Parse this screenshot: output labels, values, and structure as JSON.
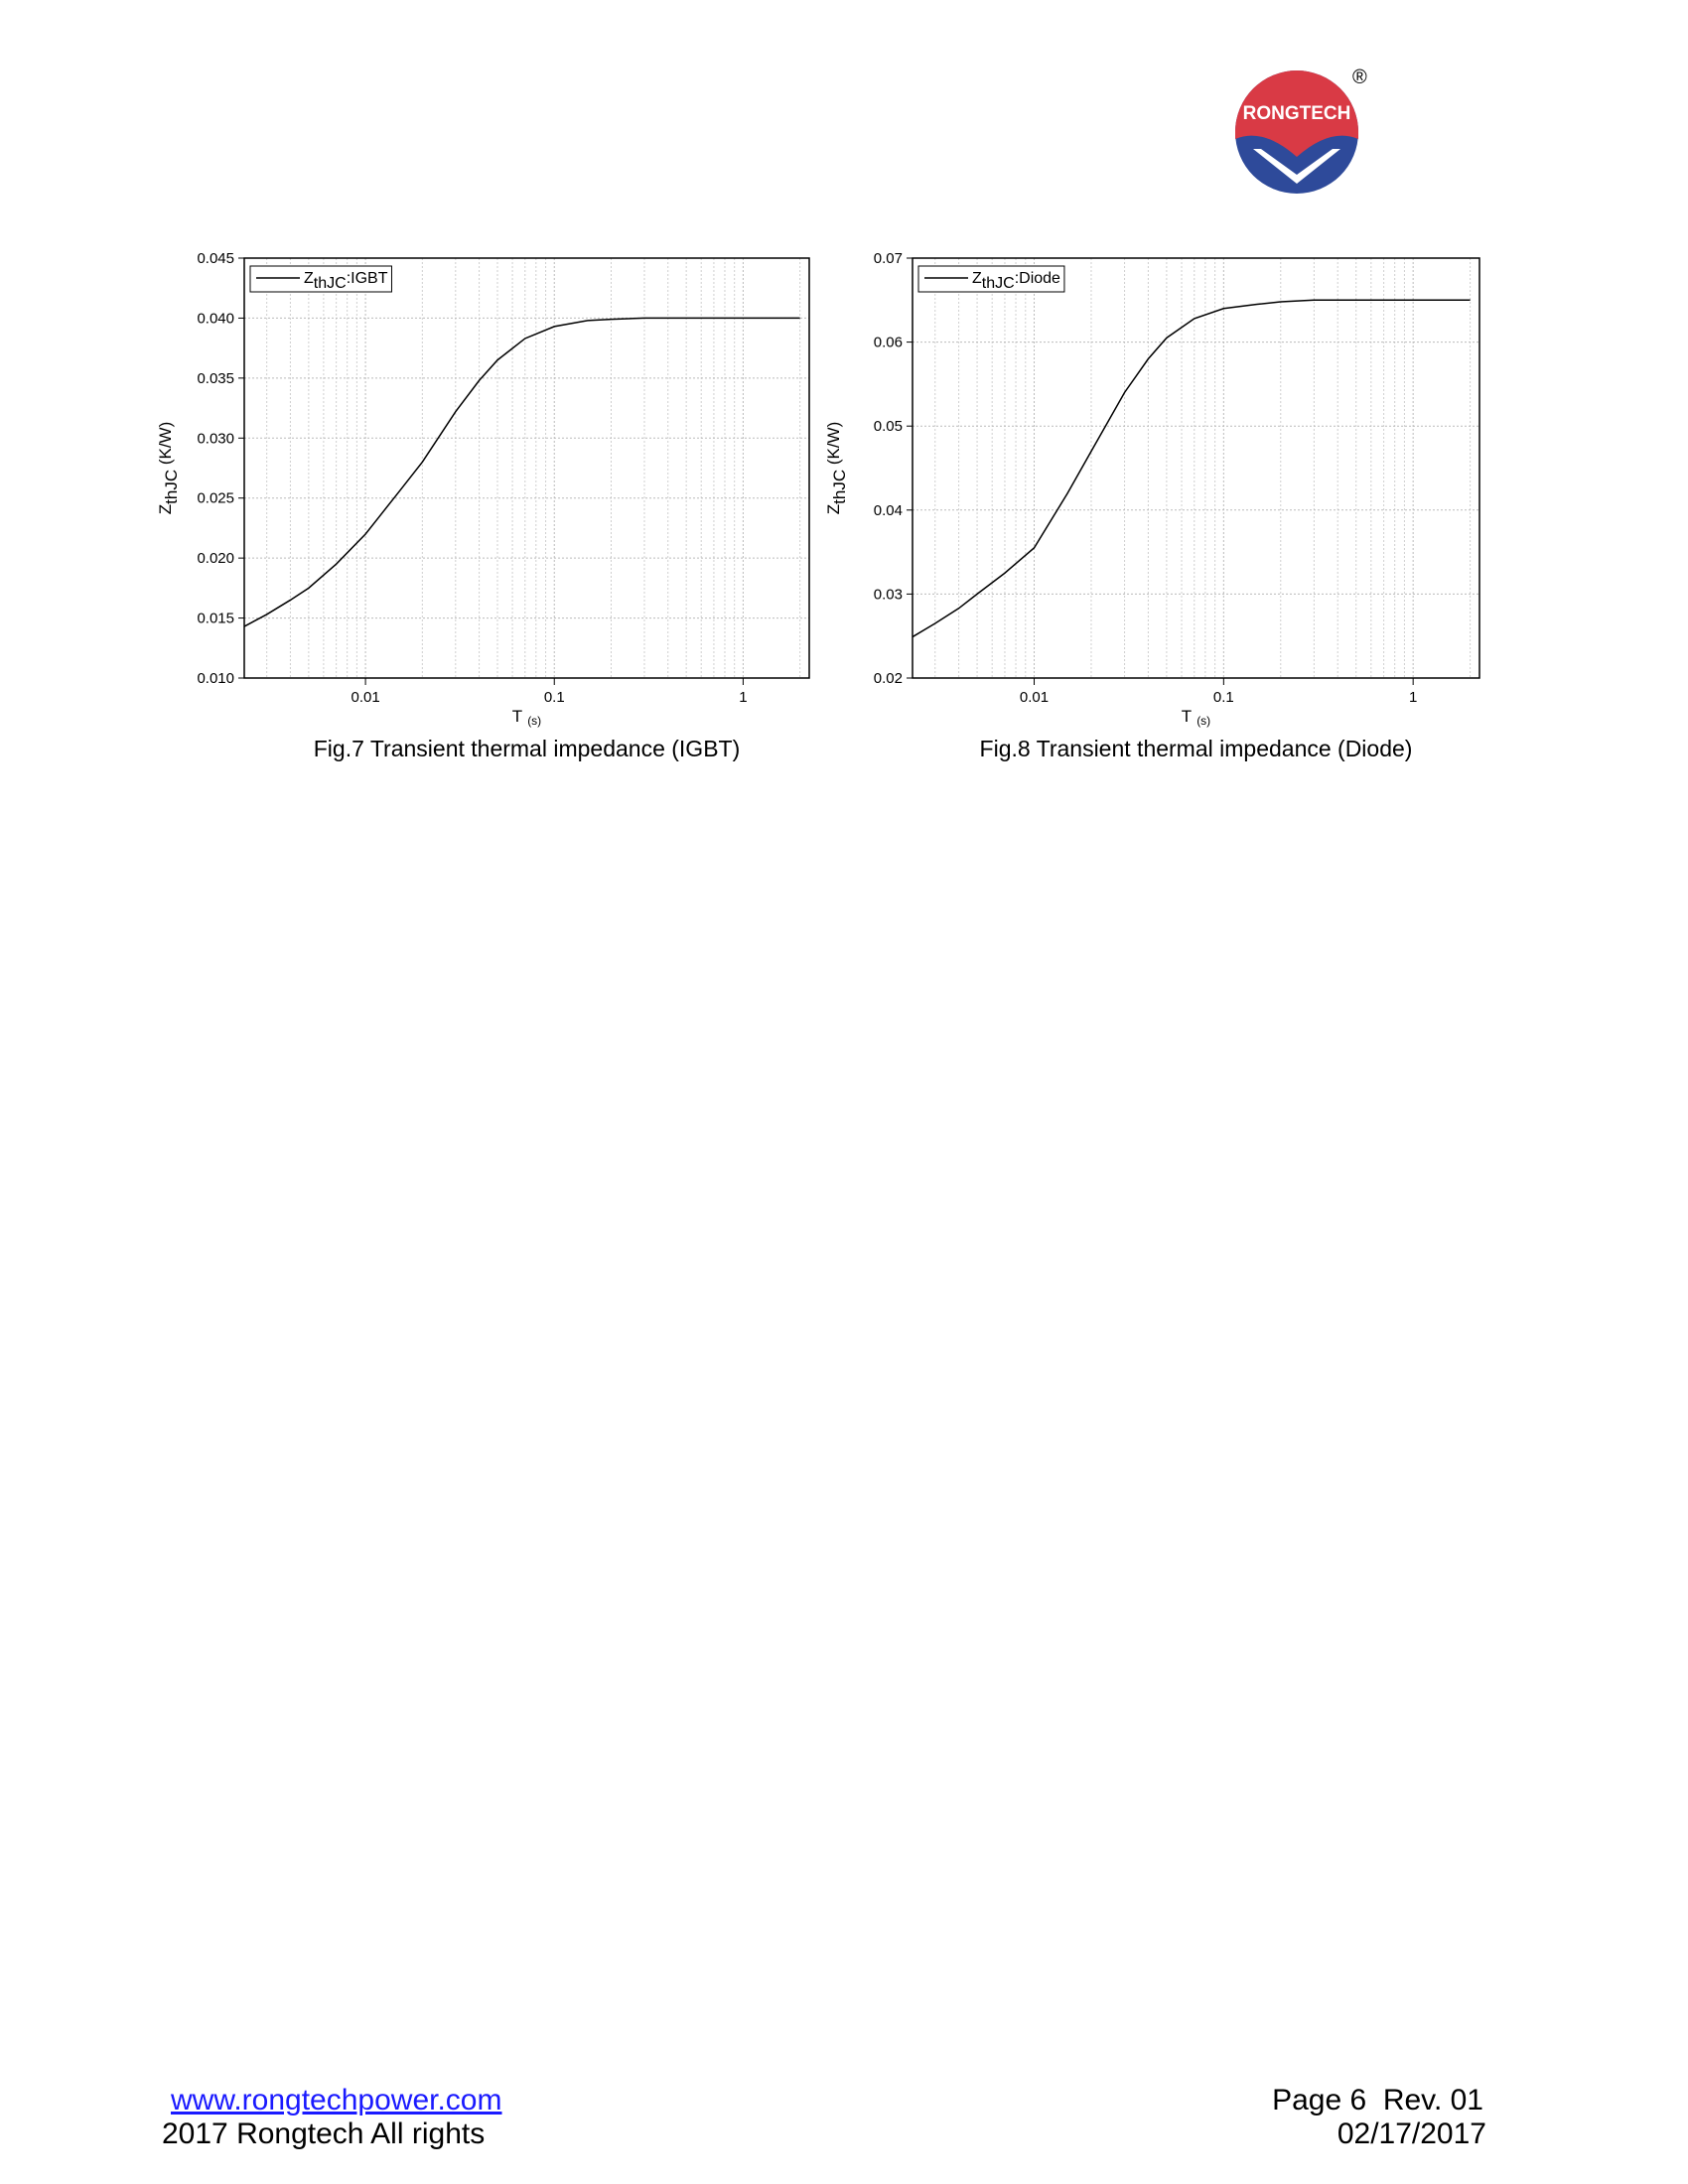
{
  "logo": {
    "text": "RONGTECH",
    "mark": "®"
  },
  "chart_data": [
    {
      "type": "line",
      "caption": "Fig.7 Transient thermal impedance (IGBT)",
      "x_label": "T",
      "x_label_unit": "(s)",
      "y_label": "Z",
      "y_label_sub": "thJC",
      "y_label_unit": " (K/W)",
      "xscale": "log",
      "xlim": [
        0.00228,
        2.24
      ],
      "xticks": [
        0.01,
        0.1,
        1
      ],
      "ylim": [
        0.01,
        0.045
      ],
      "yticks": [
        {
          "value": 0.01,
          "label": "0.010"
        },
        0.015,
        {
          "value": 0.02,
          "label": "0.020"
        },
        0.025,
        {
          "value": 0.03,
          "label": "0.030"
        },
        0.035,
        {
          "value": 0.04,
          "label": "0.040"
        },
        0.045
      ],
      "grid": true,
      "legend": "upper left",
      "x": [
        0.00228,
        0.003,
        0.004,
        0.005,
        0.007,
        0.01,
        0.015,
        0.02,
        0.03,
        0.04,
        0.05,
        0.07,
        0.1,
        0.15,
        0.2,
        0.3,
        0.5,
        1,
        2
      ],
      "series": [
        {
          "name": "Z",
          "name_sub": "thJC",
          "name_suffix": ":IGBT",
          "color": "#000000",
          "values": [
            0.0143,
            0.0153,
            0.0165,
            0.0175,
            0.0195,
            0.022,
            0.0255,
            0.028,
            0.0322,
            0.0348,
            0.0365,
            0.0383,
            0.0393,
            0.0398,
            0.0399,
            0.04,
            0.04,
            0.04,
            0.04
          ]
        }
      ]
    },
    {
      "type": "line",
      "caption": "Fig.8 Transient thermal impedance (Diode)",
      "x_label": "T",
      "x_label_unit": "(s)",
      "y_label": "Z",
      "y_label_sub": "thJC",
      "y_label_unit": " (K/W)",
      "xscale": "log",
      "xlim": [
        0.00228,
        2.24
      ],
      "xticks": [
        0.01,
        0.1,
        1
      ],
      "ylim": [
        0.02,
        0.07
      ],
      "yticks": [
        0.02,
        0.03,
        0.04,
        0.05,
        0.06,
        0.07
      ],
      "grid": true,
      "legend": "upper left",
      "x": [
        0.00228,
        0.003,
        0.004,
        0.005,
        0.007,
        0.01,
        0.015,
        0.02,
        0.03,
        0.04,
        0.05,
        0.07,
        0.1,
        0.15,
        0.2,
        0.3,
        0.5,
        1,
        2
      ],
      "series": [
        {
          "name": "Z",
          "name_sub": "thJC",
          "name_suffix": ":Diode",
          "color": "#000000",
          "values": [
            0.0249,
            0.0265,
            0.0283,
            0.03,
            0.0325,
            0.0355,
            0.042,
            0.047,
            0.054,
            0.058,
            0.0605,
            0.0628,
            0.064,
            0.0645,
            0.0648,
            0.065,
            0.065,
            0.065,
            0.065
          ]
        }
      ]
    }
  ],
  "footer": {
    "link": "www.rongtechpower.com",
    "rights": "2017 Rongtech All rights",
    "page": "Page 6  Rev. 01",
    "date": "02/17/2017"
  }
}
